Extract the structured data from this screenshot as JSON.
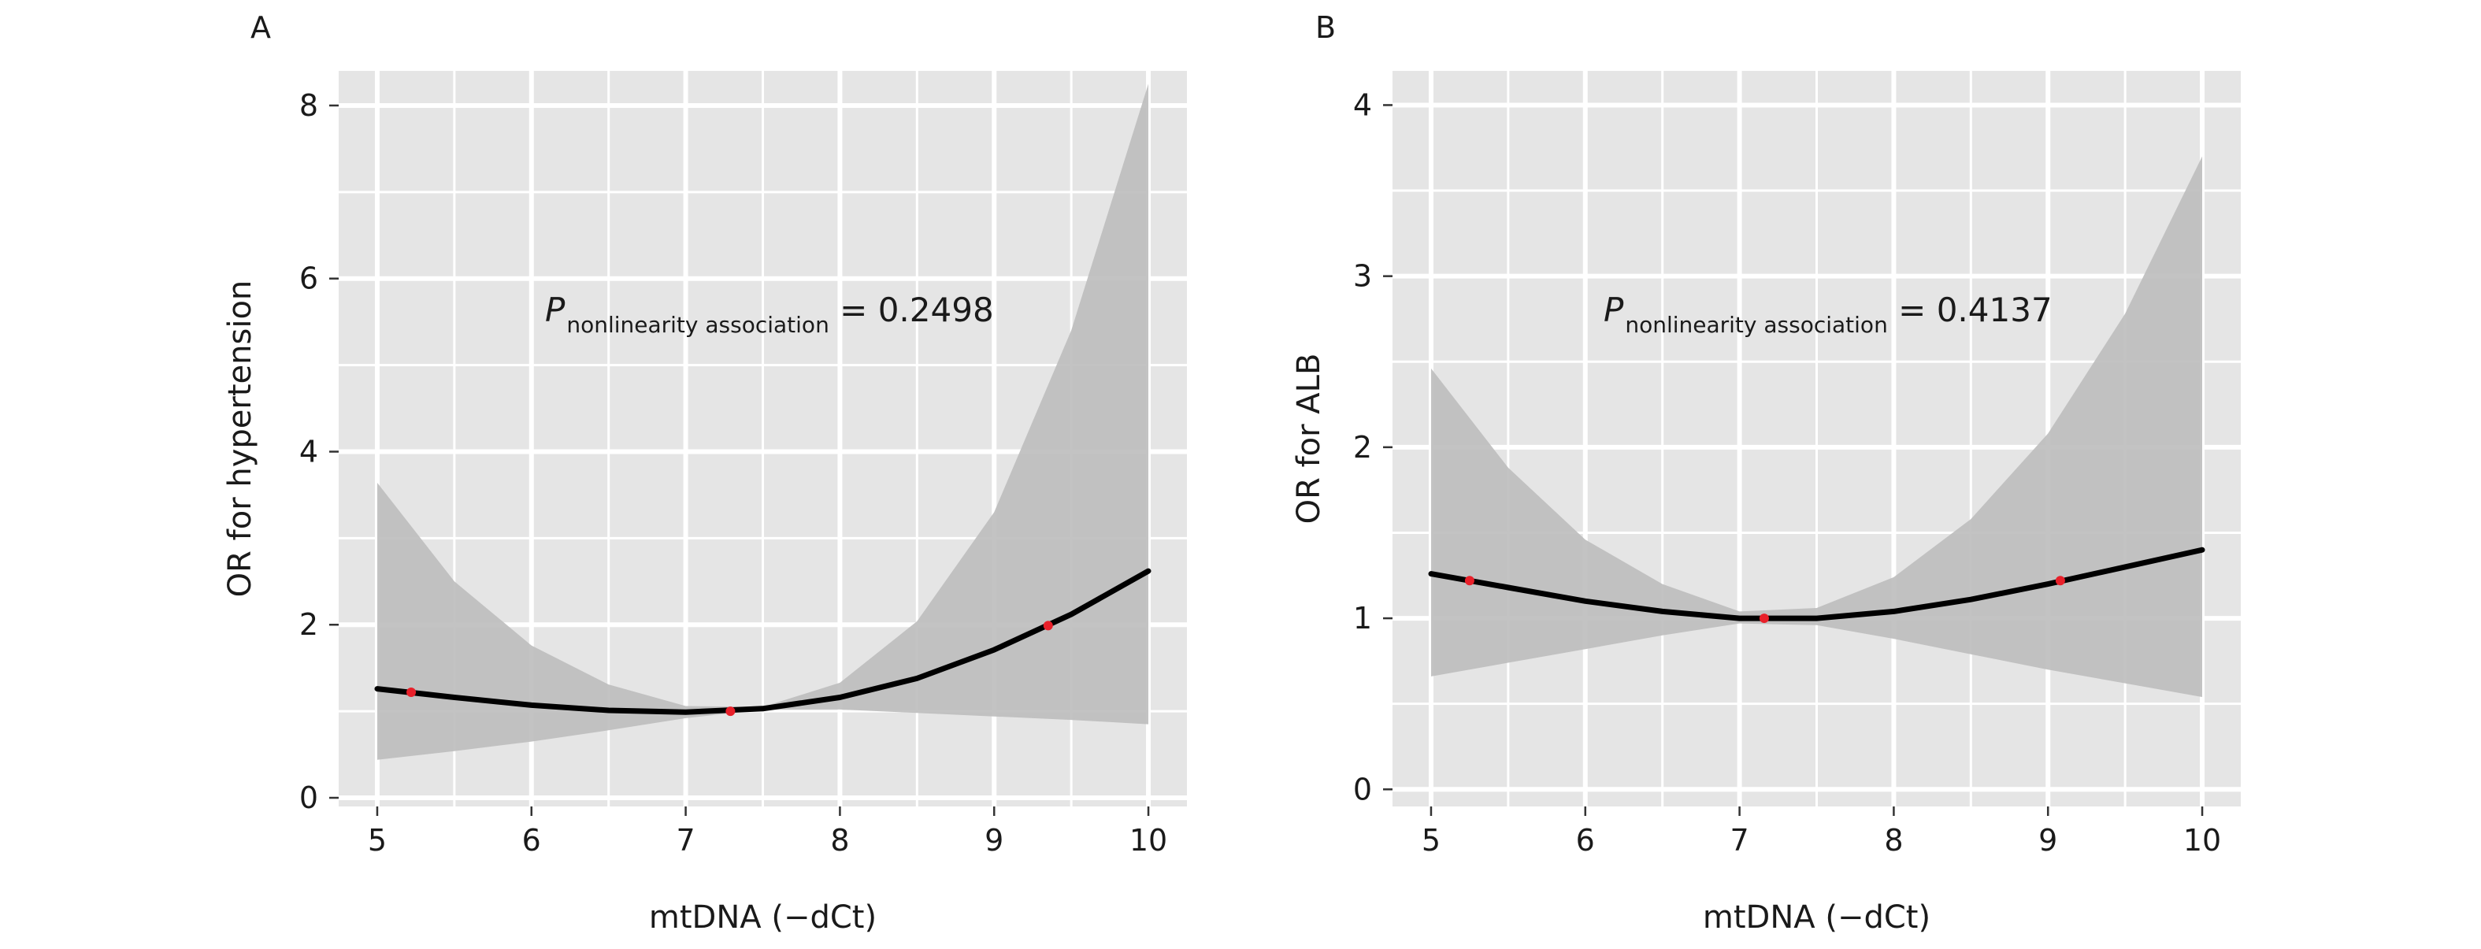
{
  "chart_data": [
    {
      "type": "line",
      "panel_label": "A",
      "xlabel": "mtDNA (−dCt)",
      "ylabel": "OR for hypertension",
      "xlim": [
        4.75,
        10.25
      ],
      "ylim": [
        -0.1,
        8.4
      ],
      "xticks": [
        5,
        6,
        7,
        8,
        9,
        10
      ],
      "yticks": [
        0,
        2,
        4,
        6,
        8
      ],
      "grid": true,
      "annotation": {
        "italic": "P",
        "subscript": "nonlinearity association",
        "text": " = 0.2498"
      },
      "series": [
        {
          "role": "estimate",
          "color": "#000000",
          "x": [
            5.0,
            5.5,
            6.0,
            6.5,
            7.0,
            7.5,
            8.0,
            8.5,
            9.0,
            9.5,
            10.0
          ],
          "y": [
            1.26,
            1.16,
            1.07,
            1.01,
            0.99,
            1.03,
            1.16,
            1.38,
            1.71,
            2.12,
            2.62
          ]
        },
        {
          "role": "confidence_band",
          "color": "#bdbdbd",
          "x": [
            5.0,
            5.5,
            6.0,
            6.5,
            7.0,
            7.5,
            8.0,
            8.5,
            9.0,
            9.5,
            10.0
          ],
          "lower": [
            0.44,
            0.54,
            0.65,
            0.78,
            0.92,
            1.02,
            1.02,
            0.98,
            0.94,
            0.9,
            0.85
          ],
          "upper": [
            3.64,
            2.5,
            1.76,
            1.31,
            1.06,
            1.05,
            1.33,
            2.04,
            3.3,
            5.4,
            8.25
          ]
        }
      ],
      "reference_points": {
        "color": "#e8202a",
        "x": [
          5.22,
          7.29,
          9.35
        ],
        "y": [
          1.22,
          1.0,
          1.99
        ]
      }
    },
    {
      "type": "line",
      "panel_label": "B",
      "xlabel": "mtDNA (−dCt)",
      "ylabel": "OR for ALB",
      "xlim": [
        4.75,
        10.25
      ],
      "ylim": [
        -0.1,
        4.2
      ],
      "xticks": [
        5,
        6,
        7,
        8,
        9,
        10
      ],
      "yticks": [
        0,
        1,
        2,
        3,
        4
      ],
      "grid": true,
      "annotation": {
        "italic": "P",
        "subscript": "nonlinearity association",
        "text": " = 0.4137"
      },
      "series": [
        {
          "role": "estimate",
          "color": "#000000",
          "x": [
            5.0,
            5.5,
            6.0,
            6.5,
            7.0,
            7.5,
            8.0,
            8.5,
            9.0,
            9.5,
            10.0
          ],
          "y": [
            1.26,
            1.18,
            1.1,
            1.04,
            1.0,
            1.0,
            1.04,
            1.11,
            1.2,
            1.3,
            1.4
          ]
        },
        {
          "role": "confidence_band",
          "color": "#bdbdbd",
          "x": [
            5.0,
            5.5,
            6.0,
            6.5,
            7.0,
            7.5,
            8.0,
            8.5,
            9.0,
            9.5,
            10.0
          ],
          "lower": [
            0.66,
            0.74,
            0.82,
            0.9,
            0.97,
            0.96,
            0.88,
            0.79,
            0.7,
            0.62,
            0.54
          ],
          "upper": [
            2.46,
            1.88,
            1.46,
            1.2,
            1.04,
            1.06,
            1.24,
            1.58,
            2.08,
            2.78,
            3.7
          ]
        }
      ],
      "reference_points": {
        "color": "#e8202a",
        "x": [
          5.25,
          7.16,
          9.08
        ],
        "y": [
          1.22,
          1.0,
          1.22
        ]
      }
    }
  ]
}
